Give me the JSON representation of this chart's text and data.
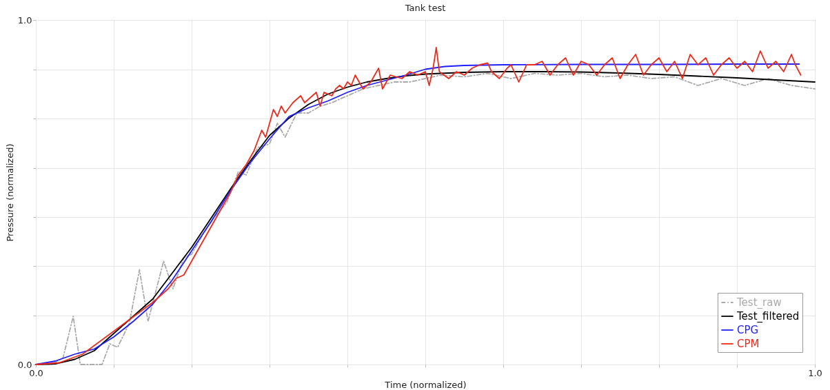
{
  "chart_data": {
    "type": "line",
    "title": "Tank test",
    "xlabel": "Time (normalized)",
    "ylabel": "Pressure (normalized)",
    "xlim": [
      0,
      1
    ],
    "ylim": [
      0,
      1
    ],
    "xticks": [
      {
        "value": 0,
        "label": "0.0"
      },
      {
        "value": 0.1,
        "label": null
      },
      {
        "value": 0.2,
        "label": null
      },
      {
        "value": 0.3,
        "label": null
      },
      {
        "value": 0.4,
        "label": null
      },
      {
        "value": 0.5,
        "label": null
      },
      {
        "value": 0.6,
        "label": null
      },
      {
        "value": 0.7,
        "label": null
      },
      {
        "value": 0.8,
        "label": null
      },
      {
        "value": 0.9,
        "label": null
      },
      {
        "value": 1,
        "label": "1.0"
      }
    ],
    "yticks": [
      {
        "value": 0,
        "label": "0.0"
      },
      {
        "value": 0.143,
        "label": null
      },
      {
        "value": 0.286,
        "label": null
      },
      {
        "value": 0.429,
        "label": null
      },
      {
        "value": 0.571,
        "label": null
      },
      {
        "value": 0.714,
        "label": null
      },
      {
        "value": 0.857,
        "label": null
      },
      {
        "value": 1,
        "label": "1.0"
      }
    ],
    "grid": true,
    "legend": "bottom right",
    "marker": "none",
    "series": [
      {
        "name": "Test_raw",
        "color": "#aaaaaa",
        "line_style": "dashed",
        "x": [
          0,
          0.02,
          0.035,
          0.048,
          0.057,
          0.07,
          0.085,
          0.095,
          0.105,
          0.12,
          0.133,
          0.144,
          0.164,
          0.176,
          0.19,
          0.2,
          0.215,
          0.23,
          0.245,
          0.26,
          0.27,
          0.285,
          0.3,
          0.31,
          0.32,
          0.335,
          0.35,
          0.365,
          0.38,
          0.4,
          0.42,
          0.44,
          0.46,
          0.48,
          0.5,
          0.52,
          0.55,
          0.58,
          0.61,
          0.64,
          0.67,
          0.7,
          0.73,
          0.76,
          0.79,
          0.82,
          0.85,
          0.88,
          0.91,
          0.94,
          0.97,
          1.0
        ],
        "values": [
          0,
          0,
          0.02,
          0.14,
          0.0,
          0,
          0,
          0.06,
          0.05,
          0.12,
          0.275,
          0.125,
          0.3,
          0.22,
          0.31,
          0.32,
          0.38,
          0.43,
          0.47,
          0.56,
          0.55,
          0.63,
          0.64,
          0.7,
          0.66,
          0.73,
          0.73,
          0.75,
          0.76,
          0.78,
          0.8,
          0.81,
          0.82,
          0.82,
          0.83,
          0.84,
          0.835,
          0.845,
          0.83,
          0.845,
          0.84,
          0.845,
          0.835,
          0.84,
          0.83,
          0.835,
          0.81,
          0.83,
          0.81,
          0.83,
          0.81,
          0.8
        ]
      },
      {
        "name": "Test_filtered",
        "color": "#000000",
        "x": [
          0,
          0.025,
          0.05,
          0.075,
          0.1,
          0.125,
          0.15,
          0.175,
          0.2,
          0.225,
          0.25,
          0.275,
          0.3,
          0.325,
          0.35,
          0.375,
          0.4,
          0.425,
          0.45,
          0.475,
          0.5,
          0.55,
          0.6,
          0.65,
          0.7,
          0.75,
          0.8,
          0.85,
          0.9,
          0.95,
          1.0
        ],
        "values": [
          0,
          0.002,
          0.015,
          0.04,
          0.09,
          0.14,
          0.19,
          0.265,
          0.34,
          0.425,
          0.51,
          0.59,
          0.665,
          0.715,
          0.755,
          0.785,
          0.805,
          0.82,
          0.83,
          0.838,
          0.843,
          0.848,
          0.85,
          0.85,
          0.849,
          0.846,
          0.842,
          0.837,
          0.832,
          0.826,
          0.82
        ]
      },
      {
        "name": "CPG",
        "color": "#1f1fff",
        "x": [
          0,
          0.025,
          0.05,
          0.075,
          0.1,
          0.125,
          0.15,
          0.175,
          0.2,
          0.225,
          0.25,
          0.275,
          0.3,
          0.325,
          0.35,
          0.375,
          0.4,
          0.425,
          0.45,
          0.475,
          0.5,
          0.525,
          0.55,
          0.6,
          0.7,
          0.8,
          0.9,
          0.98
        ],
        "values": [
          0,
          0.01,
          0.03,
          0.045,
          0.08,
          0.125,
          0.175,
          0.245,
          0.33,
          0.415,
          0.505,
          0.585,
          0.655,
          0.72,
          0.745,
          0.765,
          0.79,
          0.81,
          0.825,
          0.84,
          0.857,
          0.865,
          0.868,
          0.87,
          0.871,
          0.871,
          0.872,
          0.872
        ]
      },
      {
        "name": "CPM",
        "color": "#ee2a1a",
        "x": [
          0,
          0.03,
          0.06,
          0.09,
          0.12,
          0.15,
          0.17,
          0.18,
          0.19,
          0.2,
          0.21,
          0.22,
          0.23,
          0.24,
          0.25,
          0.26,
          0.27,
          0.28,
          0.29,
          0.295,
          0.3,
          0.305,
          0.31,
          0.315,
          0.32,
          0.33,
          0.34,
          0.345,
          0.35,
          0.36,
          0.365,
          0.37,
          0.38,
          0.385,
          0.39,
          0.395,
          0.4,
          0.405,
          0.41,
          0.42,
          0.43,
          0.44,
          0.445,
          0.455,
          0.47,
          0.48,
          0.49,
          0.5,
          0.505,
          0.51,
          0.514,
          0.518,
          0.53,
          0.54,
          0.55,
          0.56,
          0.57,
          0.58,
          0.585,
          0.595,
          0.605,
          0.61,
          0.62,
          0.63,
          0.64,
          0.65,
          0.66,
          0.67,
          0.68,
          0.69,
          0.7,
          0.71,
          0.72,
          0.73,
          0.74,
          0.75,
          0.76,
          0.77,
          0.78,
          0.79,
          0.8,
          0.81,
          0.82,
          0.83,
          0.84,
          0.85,
          0.86,
          0.87,
          0.88,
          0.89,
          0.9,
          0.91,
          0.92,
          0.93,
          0.94,
          0.95,
          0.96,
          0.97,
          0.975,
          0.982
        ],
        "values": [
          0,
          0.005,
          0.03,
          0.08,
          0.13,
          0.18,
          0.22,
          0.25,
          0.26,
          0.3,
          0.34,
          0.38,
          0.42,
          0.46,
          0.5,
          0.55,
          0.58,
          0.62,
          0.68,
          0.66,
          0.7,
          0.74,
          0.72,
          0.75,
          0.73,
          0.76,
          0.78,
          0.76,
          0.77,
          0.79,
          0.75,
          0.79,
          0.78,
          0.8,
          0.81,
          0.8,
          0.82,
          0.81,
          0.84,
          0.8,
          0.82,
          0.86,
          0.8,
          0.84,
          0.83,
          0.85,
          0.84,
          0.85,
          0.81,
          0.86,
          0.92,
          0.85,
          0.83,
          0.85,
          0.84,
          0.86,
          0.87,
          0.875,
          0.85,
          0.83,
          0.86,
          0.87,
          0.82,
          0.87,
          0.87,
          0.88,
          0.84,
          0.87,
          0.89,
          0.84,
          0.88,
          0.87,
          0.84,
          0.87,
          0.89,
          0.83,
          0.87,
          0.9,
          0.84,
          0.87,
          0.89,
          0.85,
          0.88,
          0.83,
          0.9,
          0.87,
          0.89,
          0.84,
          0.87,
          0.89,
          0.86,
          0.88,
          0.85,
          0.91,
          0.86,
          0.88,
          0.85,
          0.9,
          0.87,
          0.84
        ]
      }
    ]
  }
}
